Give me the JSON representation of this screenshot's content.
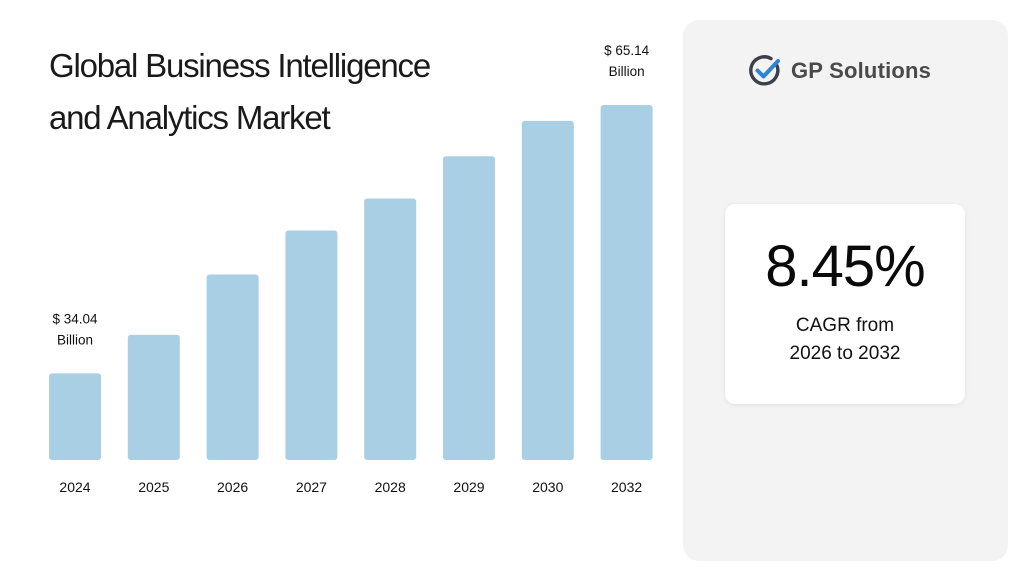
{
  "title": {
    "line1": "Global Business Intelligence",
    "line2": "and Analytics Market"
  },
  "brand": {
    "name": "GP Solutions",
    "icon": "checkmark-circle-icon",
    "colors": {
      "circle": "#3a3f48",
      "check": "#2d84d6"
    }
  },
  "stat": {
    "value": "8.45%",
    "caption_line1": "CAGR from",
    "caption_line2": "2026 to 2032"
  },
  "chart_data": {
    "type": "bar",
    "title": "Global Business Intelligence and Analytics Market",
    "categories": [
      "2024",
      "2025",
      "2026",
      "2027",
      "2028",
      "2029",
      "2030",
      "2032"
    ],
    "values": [
      34.04,
      38.5,
      45.5,
      50.6,
      54.3,
      59.2,
      63.3,
      65.14
    ],
    "unit": "Billion",
    "data_labels": [
      {
        "category": "2024",
        "line1": "$ 34.04",
        "line2": "Billion"
      },
      {
        "category": "2032",
        "line1": "$ 65.14",
        "line2": "Billion"
      }
    ],
    "xlabel": "",
    "ylabel": "",
    "ylim": [
      24,
      70
    ],
    "grid": false,
    "legend": "none",
    "bar_color": "#a8cfe3"
  }
}
